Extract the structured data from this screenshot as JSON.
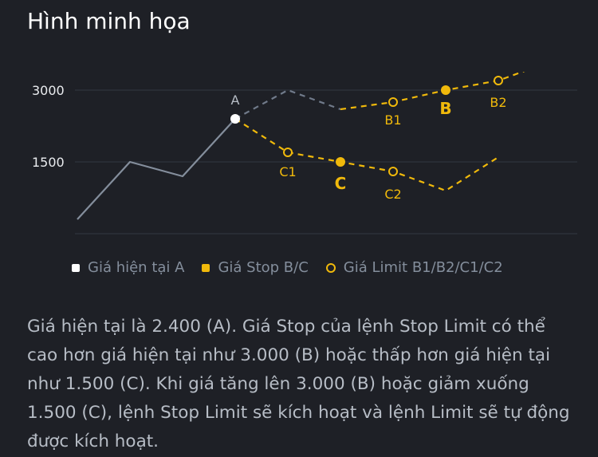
{
  "title": "Hình minh họa",
  "colors": {
    "background": "#1e2026",
    "grid": "#2b3139",
    "price_line": "#848e9c",
    "current_point": "#ffffff",
    "accent": "#f0b90b",
    "path_up": "#707a8a"
  },
  "chart_data": {
    "type": "line",
    "yticks": [
      3000,
      1500
    ],
    "grid": true,
    "legend_position": "bottom",
    "series": [
      {
        "name": "",
        "role": "price-history",
        "points": [
          [
            0,
            300
          ],
          [
            1,
            1500
          ],
          [
            2,
            1200
          ],
          [
            3,
            2400
          ]
        ]
      },
      {
        "name": "",
        "role": "path-up",
        "points": [
          [
            3,
            2400
          ],
          [
            4,
            3000
          ],
          [
            5,
            2600
          ]
        ]
      },
      {
        "name": "",
        "role": "path-up-continued",
        "points": [
          [
            5,
            2600
          ],
          [
            6,
            2750
          ],
          [
            7,
            3000
          ],
          [
            8,
            3200
          ],
          [
            9,
            3600
          ]
        ]
      },
      {
        "name": "",
        "role": "path-down",
        "points": [
          [
            3,
            2400
          ],
          [
            4,
            1700
          ],
          [
            5,
            1500
          ],
          [
            6,
            1300
          ],
          [
            7,
            900
          ],
          [
            8,
            1600
          ]
        ]
      }
    ],
    "markers": [
      {
        "label": "A",
        "x": 3,
        "y": 2400,
        "kind": "current"
      },
      {
        "label": "B1",
        "x": 6,
        "y": 2750,
        "kind": "limit"
      },
      {
        "label": "B",
        "x": 7,
        "y": 3000,
        "kind": "stop"
      },
      {
        "label": "B2",
        "x": 8,
        "y": 3200,
        "kind": "limit"
      },
      {
        "label": "C1",
        "x": 4,
        "y": 1700,
        "kind": "limit"
      },
      {
        "label": "C",
        "x": 5,
        "y": 1500,
        "kind": "stop"
      },
      {
        "label": "C2",
        "x": 6,
        "y": 1300,
        "kind": "limit"
      }
    ],
    "legend": [
      {
        "label": "Giá hiện tại A",
        "kind": "current"
      },
      {
        "label": "Giá Stop B/C",
        "kind": "stop"
      },
      {
        "label": "Giá Limit B1/B2/C1/C2",
        "kind": "limit"
      }
    ]
  },
  "description": "Giá hiện tại là 2.400 (A). Giá Stop của lệnh Stop Limit có thể cao hơn giá hiện tại như 3.000 (B) hoặc thấp hơn giá hiện tại như 1.500 (C). Khi giá tăng lên 3.000 (B) hoặc giảm xuống 1.500 (C), lệnh Stop Limit sẽ kích hoạt và lệnh Limit sẽ tự động được kích hoạt."
}
